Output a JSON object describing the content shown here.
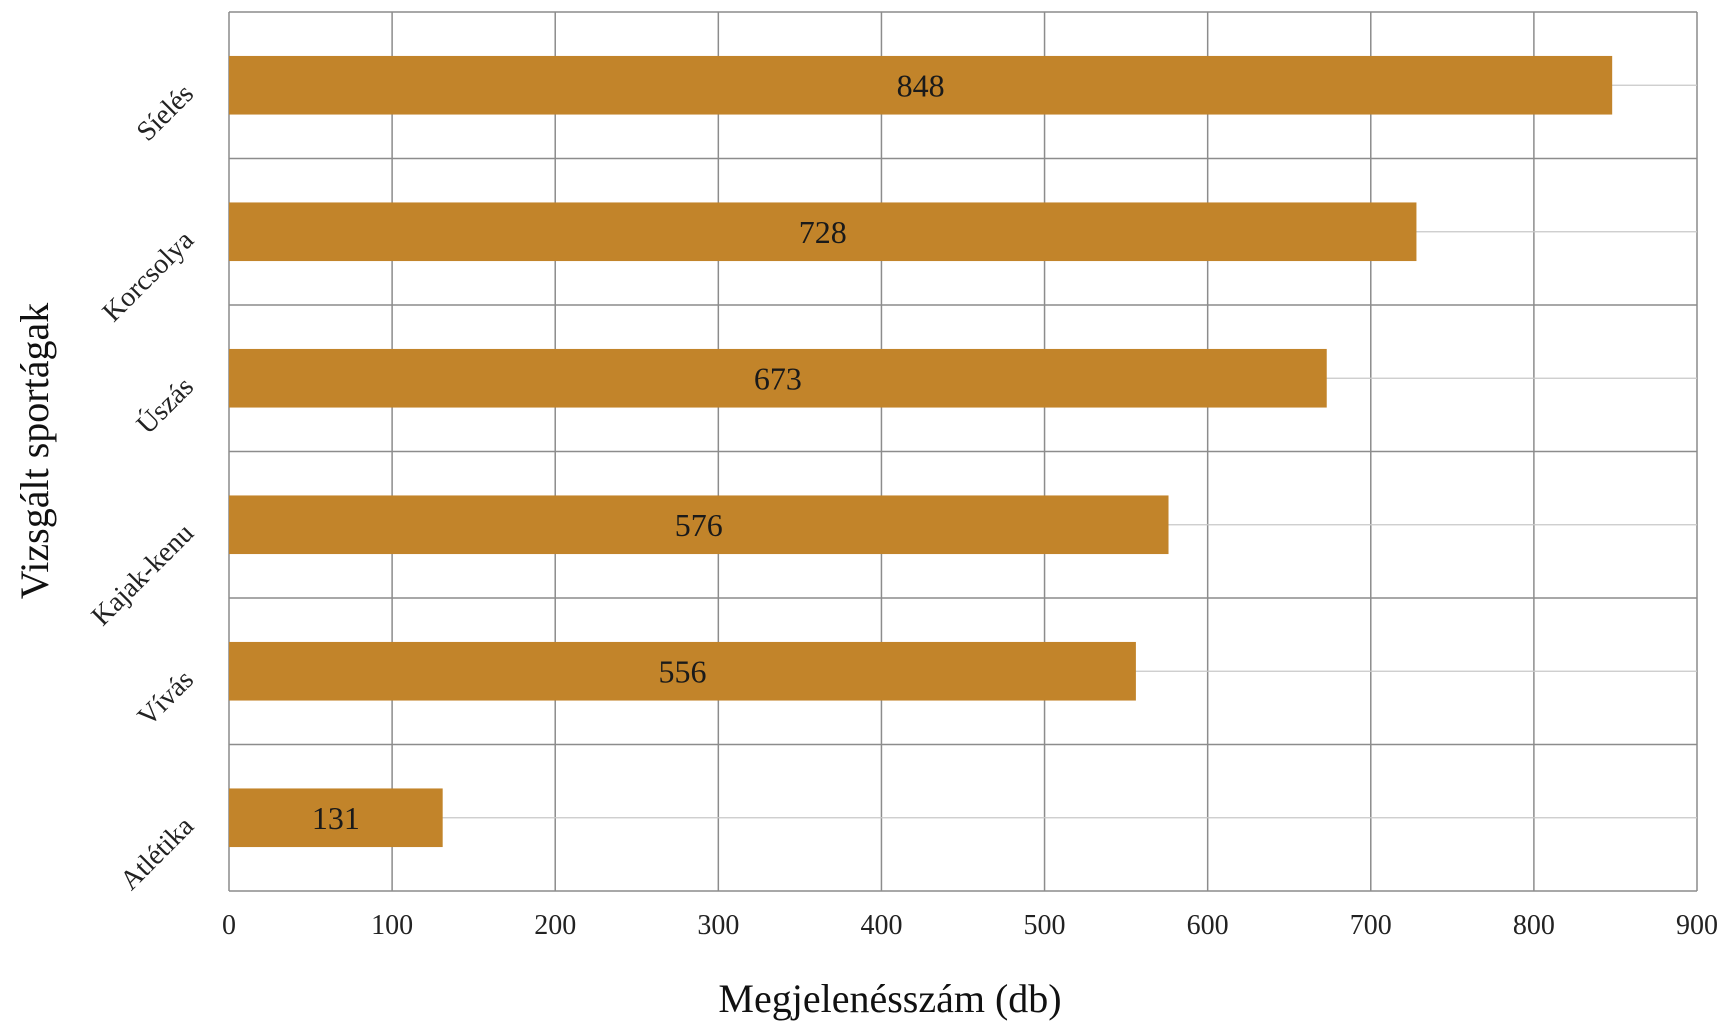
{
  "chart_data": {
    "type": "bar",
    "orientation": "horizontal",
    "categories": [
      "Síelés",
      "Korcsolya",
      "Úszás",
      "Kajak-kenu",
      "Vívás",
      "Atlétika"
    ],
    "values": [
      848,
      728,
      673,
      576,
      556,
      131
    ],
    "xlabel": "Megjelenésszám (db)",
    "ylabel": "Vizsgált sportágak",
    "xlim": [
      0,
      900
    ],
    "xticks": [
      0,
      100,
      200,
      300,
      400,
      500,
      600,
      700,
      800,
      900
    ],
    "grid": true,
    "bar_color": "#C2842A",
    "data_labels": true
  }
}
